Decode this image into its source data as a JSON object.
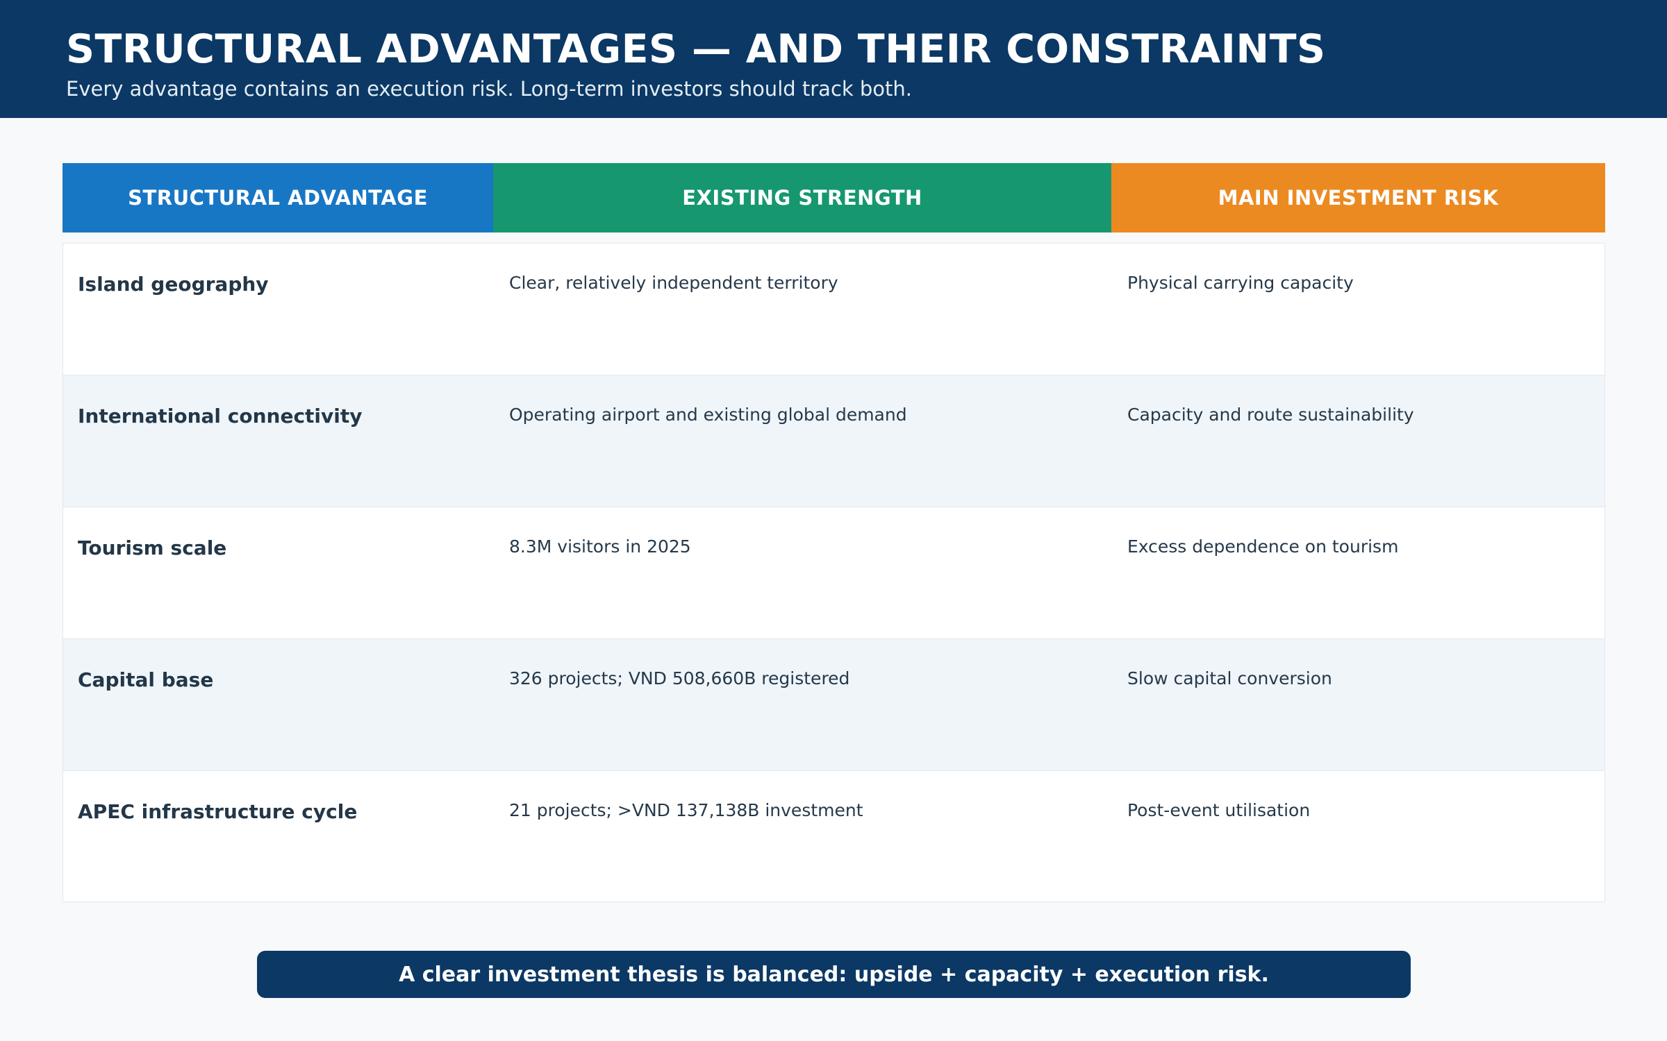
{
  "header": {
    "title": "STRUCTURAL ADVANTAGES — AND THEIR CONSTRAINTS",
    "subtitle": "Every advantage contains an execution risk. Long-term investors should track both."
  },
  "table": {
    "columns": [
      {
        "label": "STRUCTURAL ADVANTAGE",
        "color": "#1877c4"
      },
      {
        "label": "EXISTING STRENGTH",
        "color": "#16976f"
      },
      {
        "label": "MAIN INVESTMENT RISK",
        "color": "#ec8a22"
      }
    ],
    "rows": [
      {
        "advantage": "Island geography",
        "strength": "Clear, relatively independent territory",
        "risk": "Physical carrying capacity"
      },
      {
        "advantage": "International connectivity",
        "strength": "Operating airport and existing global demand",
        "risk": "Capacity and route sustainability"
      },
      {
        "advantage": "Tourism scale",
        "strength": "8.3M visitors in 2025",
        "risk": "Excess dependence on tourism"
      },
      {
        "advantage": "Capital base",
        "strength": "326 projects; VND 508,660B registered",
        "risk": "Slow capital conversion"
      },
      {
        "advantage": "APEC infrastructure cycle",
        "strength": "21 projects; >VND 137,138B investment",
        "risk": "Post-event utilisation"
      }
    ]
  },
  "footer": {
    "text": "A clear investment thesis is balanced: upside + capacity + execution risk."
  }
}
